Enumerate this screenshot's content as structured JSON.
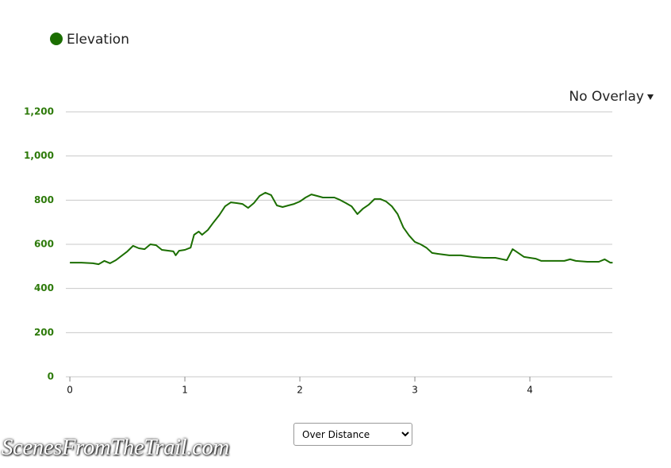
{
  "chart_data": {
    "type": "line",
    "legend": "Elevation",
    "overlay": "No Overlay",
    "mode_select": "Over Distance",
    "watermark": "ScenesFromTheTrail.com",
    "series": [
      {
        "name": "Elevation",
        "color": "#1b6e00",
        "x": [
          0,
          0.1,
          0.2,
          0.25,
          0.3,
          0.35,
          0.4,
          0.5,
          0.55,
          0.6,
          0.65,
          0.7,
          0.75,
          0.8,
          0.9,
          0.92,
          0.95,
          1.0,
          1.05,
          1.08,
          1.12,
          1.15,
          1.2,
          1.25,
          1.3,
          1.35,
          1.4,
          1.45,
          1.5,
          1.55,
          1.6,
          1.65,
          1.7,
          1.75,
          1.8,
          1.85,
          1.9,
          1.95,
          2.0,
          2.05,
          2.1,
          2.15,
          2.2,
          2.3,
          2.35,
          2.4,
          2.45,
          2.5,
          2.55,
          2.6,
          2.65,
          2.7,
          2.75,
          2.8,
          2.85,
          2.9,
          2.95,
          3.0,
          3.05,
          3.1,
          3.15,
          3.2,
          3.3,
          3.4,
          3.5,
          3.6,
          3.7,
          3.8,
          3.85,
          3.9,
          3.95,
          4.0,
          4.05,
          4.1,
          4.2,
          4.3,
          4.35,
          4.4,
          4.5,
          4.6,
          4.65,
          4.7,
          4.72
        ],
        "values": [
          517,
          517,
          514,
          510,
          525,
          514,
          528,
          568,
          593,
          582,
          578,
          600,
          596,
          575,
          568,
          550,
          571,
          575,
          585,
          643,
          658,
          643,
          665,
          700,
          733,
          772,
          790,
          787,
          783,
          765,
          787,
          819,
          834,
          823,
          776,
          769,
          776,
          783,
          794,
          812,
          826,
          819,
          812,
          812,
          801,
          787,
          772,
          737,
          762,
          780,
          805,
          805,
          794,
          772,
          737,
          676,
          640,
          611,
          600,
          585,
          561,
          557,
          550,
          550,
          543,
          539,
          539,
          528,
          578,
          561,
          543,
          539,
          535,
          525,
          525,
          525,
          532,
          525,
          521,
          521,
          532,
          517,
          517
        ]
      }
    ],
    "xlim": [
      -0.035,
      4.717
    ],
    "xticks": [
      0,
      1,
      2,
      3,
      4
    ],
    "ylim": [
      0,
      1200
    ],
    "yticks": [
      0,
      200,
      400,
      600,
      800,
      {
        "value": 1000,
        "label": "1,000"
      },
      {
        "value": 1200,
        "label": "1,200"
      }
    ],
    "grid": true
  }
}
